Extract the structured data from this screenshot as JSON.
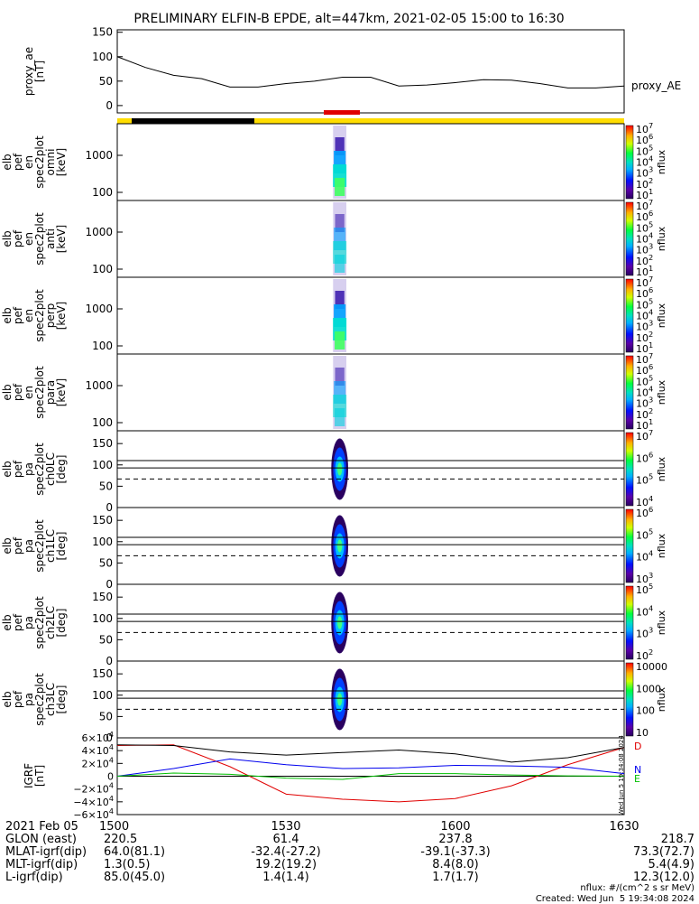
{
  "title": "PRELIMINARY ELFIN-B EPDE, alt=447km, 2021-02-05 15:00 to 16:30",
  "colors": {
    "black": "#000000",
    "red": "#e00000",
    "yellow": "#ffdd00",
    "blue": "#0000ee",
    "green": "#00c000",
    "gray": "#888888"
  },
  "chart_data": [
    {
      "type": "line",
      "panel": "proxy_ae",
      "ylabel": [
        "proxy_ae",
        "[nT]"
      ],
      "yticks": [
        "150",
        "100",
        "50",
        "0"
      ],
      "ylim": [
        -15,
        155
      ],
      "series": [
        {
          "name": "proxy_AE",
          "x": [
            "15:00",
            "15:05",
            "15:10",
            "15:15",
            "15:20",
            "15:25",
            "15:30",
            "15:35",
            "15:40",
            "15:45",
            "15:50",
            "15:55",
            "16:00",
            "16:05",
            "16:10",
            "16:15",
            "16:20",
            "16:25",
            "16:30"
          ],
          "values": [
            100,
            78,
            62,
            55,
            38,
            38,
            45,
            50,
            58,
            58,
            40,
            42,
            47,
            53,
            52,
            45,
            36,
            36,
            40
          ]
        }
      ]
    },
    {
      "type": "heatmap",
      "panel": "omni",
      "ylabel": [
        "elb",
        "pef",
        "en",
        "spec2plot",
        "omni",
        "[keV]"
      ],
      "yscale": "log",
      "yticks": [
        "1000",
        "100"
      ],
      "colorbar": {
        "label": "nflux",
        "scale": "log",
        "ticks": [
          "10^7",
          "10^6",
          "10^5",
          "10^4",
          "10^3",
          "10^2",
          "10^1"
        ]
      },
      "data_interval": [
        "15:38",
        "15:41"
      ]
    },
    {
      "type": "heatmap",
      "panel": "anti",
      "ylabel": [
        "elb",
        "pef",
        "en",
        "spec2plot",
        "anti",
        "[keV]"
      ],
      "yscale": "log",
      "yticks": [
        "1000",
        "100"
      ],
      "colorbar": {
        "label": "nflux",
        "scale": "log",
        "ticks": [
          "10^7",
          "10^6",
          "10^5",
          "10^4",
          "10^3",
          "10^2",
          "10^1"
        ]
      },
      "data_interval": [
        "15:38",
        "15:41"
      ]
    },
    {
      "type": "heatmap",
      "panel": "perp",
      "ylabel": [
        "elb",
        "pef",
        "en",
        "spec2plot",
        "perp",
        "[keV]"
      ],
      "yscale": "log",
      "yticks": [
        "1000",
        "100"
      ],
      "colorbar": {
        "label": "nflux",
        "scale": "log",
        "ticks": [
          "10^7",
          "10^6",
          "10^5",
          "10^4",
          "10^3",
          "10^2",
          "10^1"
        ]
      },
      "data_interval": [
        "15:38",
        "15:41"
      ]
    },
    {
      "type": "heatmap",
      "panel": "para",
      "ylabel": [
        "elb",
        "pef",
        "en",
        "spec2plot",
        "para",
        "[keV]"
      ],
      "yscale": "log",
      "yticks": [
        "1000",
        "100"
      ],
      "colorbar": {
        "label": "nflux",
        "scale": "log",
        "ticks": [
          "10^7",
          "10^6",
          "10^5",
          "10^4",
          "10^3",
          "10^2",
          "10^1"
        ]
      },
      "data_interval": [
        "15:38",
        "15:41"
      ]
    },
    {
      "type": "heatmap",
      "panel": "ch0LC",
      "ylabel": [
        "elb",
        "pef",
        "pa",
        "spec2plot",
        "ch0LC",
        "[deg]"
      ],
      "yticks": [
        "150",
        "100",
        "50",
        "0"
      ],
      "ylim": [
        0,
        180
      ],
      "hlines": [
        110,
        93
      ],
      "dashed": 67,
      "colorbar": {
        "label": "nflux",
        "scale": "log",
        "ticks": [
          "10^7",
          "10^6",
          "10^5",
          "10^4"
        ]
      },
      "data_interval": [
        "15:38",
        "15:41"
      ]
    },
    {
      "type": "heatmap",
      "panel": "ch1LC",
      "ylabel": [
        "elb",
        "pef",
        "pa",
        "spec2plot",
        "ch1LC",
        "[deg]"
      ],
      "yticks": [
        "150",
        "100",
        "50",
        "0"
      ],
      "ylim": [
        0,
        180
      ],
      "hlines": [
        110,
        93
      ],
      "dashed": 67,
      "colorbar": {
        "label": "nflux",
        "scale": "log",
        "ticks": [
          "10^6",
          "10^5",
          "10^4",
          "10^3"
        ]
      },
      "data_interval": [
        "15:38",
        "15:41"
      ]
    },
    {
      "type": "heatmap",
      "panel": "ch2LC",
      "ylabel": [
        "elb",
        "pef",
        "pa",
        "spec2plot",
        "ch2LC",
        "[deg]"
      ],
      "yticks": [
        "150",
        "100",
        "50",
        "0"
      ],
      "ylim": [
        0,
        180
      ],
      "hlines": [
        110,
        93
      ],
      "dashed": 67,
      "colorbar": {
        "label": "nflux",
        "scale": "log",
        "ticks": [
          "10^5",
          "10^4",
          "10^3",
          "10^2"
        ]
      },
      "data_interval": [
        "15:38",
        "15:41"
      ]
    },
    {
      "type": "heatmap",
      "panel": "ch3LC",
      "ylabel": [
        "elb",
        "pef",
        "pa",
        "spec2plot",
        "ch3LC",
        "[deg]"
      ],
      "yticks": [
        "150",
        "100",
        "50",
        "0"
      ],
      "ylim": [
        0,
        180
      ],
      "hlines": [
        110,
        93
      ],
      "dashed": 67,
      "colorbar": {
        "label": "nflux",
        "scale": "linear-log",
        "ticks": [
          "10000",
          "1000",
          "100",
          "10"
        ]
      },
      "data_interval": [
        "15:38",
        "15:41"
      ]
    },
    {
      "type": "line",
      "panel": "igrf",
      "ylabel": [
        "IGRF",
        "[nT]"
      ],
      "yticks": [
        "6×10^4",
        "4×10^4",
        "2×10^4",
        "0",
        "−2×10^4",
        "−4×10^4",
        "−6×10^4"
      ],
      "ylim": [
        -60000,
        60000
      ],
      "series": [
        {
          "name": "D",
          "x": [
            "15:00",
            "15:10",
            "15:20",
            "15:30",
            "15:40",
            "15:50",
            "16:00",
            "16:10",
            "16:20",
            "16:30"
          ],
          "values": [
            48000,
            49000,
            15000,
            -28000,
            -36000,
            -40000,
            -35000,
            -15000,
            18000,
            45000
          ]
        },
        {
          "name": "N",
          "x": [
            "15:00",
            "15:10",
            "15:20",
            "15:30",
            "15:40",
            "15:50",
            "16:00",
            "16:10",
            "16:20",
            "16:30"
          ],
          "values": [
            0,
            12000,
            27000,
            18000,
            12000,
            13000,
            17000,
            16000,
            14000,
            4000
          ]
        },
        {
          "name": "E",
          "x": [
            "15:00",
            "15:10",
            "15:20",
            "15:30",
            "15:40",
            "15:50",
            "16:00",
            "16:10",
            "16:20",
            "16:30"
          ],
          "values": [
            0,
            5000,
            3000,
            -3000,
            -5000,
            4000,
            4000,
            2000,
            500,
            0
          ]
        },
        {
          "name": "",
          "x": [
            "15:00",
            "15:10",
            "15:20",
            "15:30",
            "15:40",
            "15:50",
            "16:00",
            "16:10",
            "16:20",
            "16:30"
          ],
          "values": [
            49000,
            48000,
            38000,
            33000,
            37000,
            41000,
            35000,
            22000,
            29000,
            45000
          ]
        }
      ]
    }
  ],
  "proxy_legend": "proxy_AE",
  "igrf_legend": [
    "D",
    "N",
    "E"
  ],
  "side_stamp": "Wed Jun  5 19:34:08 2024",
  "footer": {
    "row_labels": [
      "2021 Feb 05",
      "GLON (east)",
      "MLAT-igrf(dip)",
      "MLT-igrf(dip)",
      "L-igrf(dip)"
    ],
    "columns": [
      {
        "time": "1500",
        "values": [
          "220.5",
          "64.0(81.1)",
          "1.3(0.5)",
          "85.0(45.0)"
        ]
      },
      {
        "time": "1530",
        "values": [
          "61.4",
          "-32.4(-27.2)",
          "19.2(19.2)",
          "1.4(1.4)"
        ]
      },
      {
        "time": "1600",
        "values": [
          "237.8",
          "-39.1(-37.3)",
          "8.4(8.0)",
          "1.7(1.7)"
        ]
      },
      {
        "time": "1630",
        "values": [
          "218.7",
          "73.3(72.7)",
          "5.4(4.9)",
          "12.3(12.0)"
        ]
      }
    ],
    "units": "nflux: #/(cm^2 s sr MeV)",
    "created": "Created: Wed Jun  5 19:34:08 2024"
  }
}
